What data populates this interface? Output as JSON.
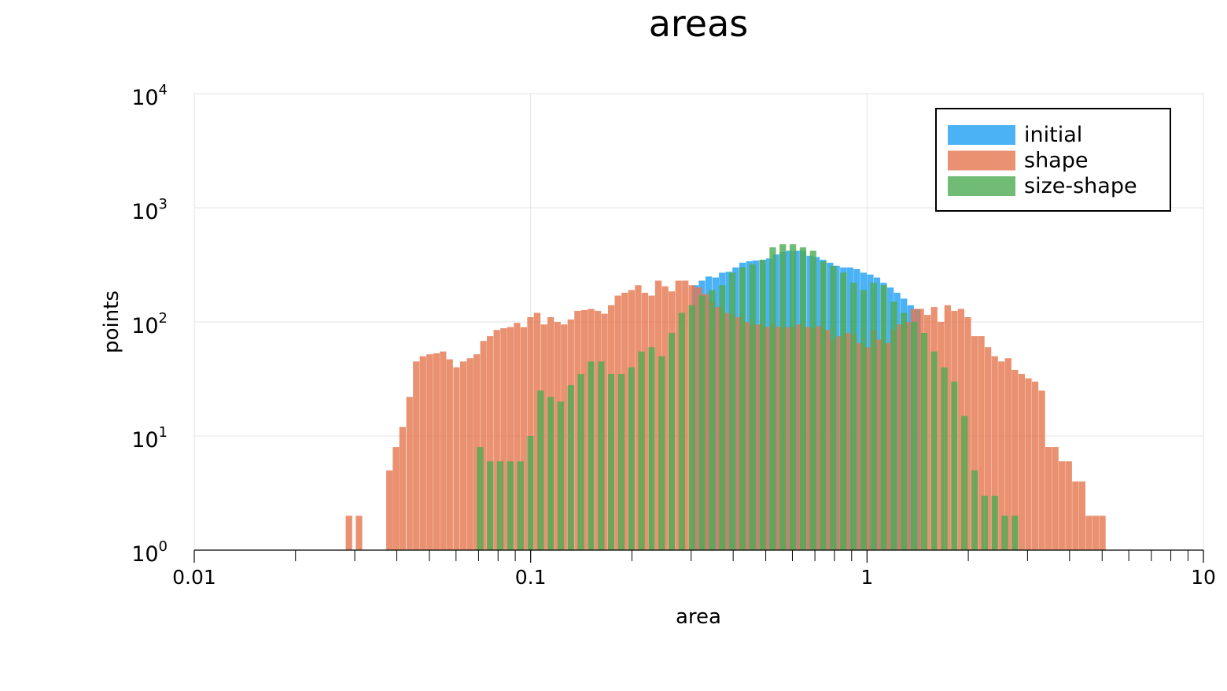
{
  "chart_data": {
    "type": "bar",
    "title": "areas",
    "xlabel": "area",
    "ylabel": "points",
    "x_scale": "log",
    "y_scale": "log",
    "xlim": [
      0.01,
      10
    ],
    "ylim": [
      1,
      10000
    ],
    "x_ticks": [
      {
        "value": 0.01,
        "label": "0.01"
      },
      {
        "value": 0.1,
        "label": "0.1"
      },
      {
        "value": 1,
        "label": "1"
      },
      {
        "value": 10,
        "label": "10"
      }
    ],
    "y_ticks": [
      {
        "value": 1,
        "base": "10",
        "exp": "0"
      },
      {
        "value": 10,
        "base": "10",
        "exp": "1"
      },
      {
        "value": 100,
        "base": "10",
        "exp": "2"
      },
      {
        "value": 1000,
        "base": "10",
        "exp": "3"
      },
      {
        "value": 10000,
        "base": "10",
        "exp": "4"
      }
    ],
    "grid": true,
    "legend_position": "top-right",
    "series": [
      {
        "name": "initial",
        "color": "#1e9ff2",
        "bins": [
          [
            0.302,
            210
          ],
          [
            0.316,
            230
          ],
          [
            0.331,
            250
          ],
          [
            0.347,
            245
          ],
          [
            0.363,
            270
          ],
          [
            0.38,
            275
          ],
          [
            0.398,
            300
          ],
          [
            0.417,
            330
          ],
          [
            0.437,
            340
          ],
          [
            0.457,
            345
          ],
          [
            0.479,
            350
          ],
          [
            0.501,
            360
          ],
          [
            0.525,
            390
          ],
          [
            0.55,
            410
          ],
          [
            0.575,
            420
          ],
          [
            0.603,
            420
          ],
          [
            0.631,
            420
          ],
          [
            0.661,
            380
          ],
          [
            0.692,
            370
          ],
          [
            0.724,
            350
          ],
          [
            0.759,
            330
          ],
          [
            0.794,
            310
          ],
          [
            0.832,
            300
          ],
          [
            0.871,
            300
          ],
          [
            0.912,
            290
          ],
          [
            0.955,
            270
          ],
          [
            1.0,
            260
          ],
          [
            1.047,
            245
          ],
          [
            1.096,
            220
          ],
          [
            1.148,
            200
          ],
          [
            1.202,
            180
          ],
          [
            1.259,
            160
          ],
          [
            1.318,
            140
          ],
          [
            1.38,
            130
          ]
        ]
      },
      {
        "name": "shape",
        "color": "#e3764e",
        "bins": [
          [
            0.0282,
            2
          ],
          [
            0.0302,
            2
          ],
          [
            0.0355,
            1
          ],
          [
            0.0372,
            5
          ],
          [
            0.0389,
            8
          ],
          [
            0.0407,
            12
          ],
          [
            0.0427,
            22
          ],
          [
            0.0447,
            45
          ],
          [
            0.0468,
            50
          ],
          [
            0.049,
            52
          ],
          [
            0.0513,
            53
          ],
          [
            0.0537,
            55
          ],
          [
            0.0562,
            47
          ],
          [
            0.0589,
            40
          ],
          [
            0.0617,
            45
          ],
          [
            0.0646,
            48
          ],
          [
            0.0676,
            52
          ],
          [
            0.0708,
            68
          ],
          [
            0.0741,
            75
          ],
          [
            0.0776,
            85
          ],
          [
            0.0813,
            88
          ],
          [
            0.0851,
            90
          ],
          [
            0.0891,
            98
          ],
          [
            0.0933,
            90
          ],
          [
            0.0977,
            110
          ],
          [
            0.1023,
            120
          ],
          [
            0.1072,
            95
          ],
          [
            0.1122,
            110
          ],
          [
            0.1175,
            100
          ],
          [
            0.123,
            95
          ],
          [
            0.1288,
            105
          ],
          [
            0.1349,
            125
          ],
          [
            0.1413,
            127
          ],
          [
            0.1479,
            130
          ],
          [
            0.1549,
            125
          ],
          [
            0.1622,
            118
          ],
          [
            0.1698,
            140
          ],
          [
            0.1778,
            170
          ],
          [
            0.1862,
            180
          ],
          [
            0.195,
            190
          ],
          [
            0.2042,
            210
          ],
          [
            0.2138,
            180
          ],
          [
            0.2239,
            170
          ],
          [
            0.2344,
            230
          ],
          [
            0.2455,
            205
          ],
          [
            0.257,
            185
          ],
          [
            0.2692,
            230
          ],
          [
            0.2818,
            230
          ],
          [
            0.2951,
            210
          ],
          [
            0.309,
            200
          ],
          [
            0.3236,
            175
          ],
          [
            0.3388,
            150
          ],
          [
            0.3548,
            135
          ],
          [
            0.3715,
            120
          ],
          [
            0.389,
            115
          ],
          [
            0.4074,
            110
          ],
          [
            0.4266,
            100
          ],
          [
            0.4467,
            95
          ],
          [
            0.4677,
            95
          ],
          [
            0.4898,
            90
          ],
          [
            0.5129,
            95
          ],
          [
            0.537,
            90
          ],
          [
            0.5623,
            90
          ],
          [
            0.5888,
            90
          ],
          [
            0.6166,
            95
          ],
          [
            0.6457,
            90
          ],
          [
            0.6761,
            88
          ],
          [
            0.7079,
            92
          ],
          [
            0.7413,
            85
          ],
          [
            0.7762,
            70
          ],
          [
            0.8128,
            75
          ],
          [
            0.8511,
            80
          ],
          [
            0.8913,
            78
          ],
          [
            0.9333,
            65
          ],
          [
            0.9772,
            60
          ],
          [
            1.0233,
            85
          ],
          [
            1.0715,
            70
          ],
          [
            1.122,
            65
          ],
          [
            1.1749,
            85
          ],
          [
            1.2303,
            95
          ],
          [
            1.2882,
            100
          ],
          [
            1.349,
            130
          ],
          [
            1.4125,
            130
          ],
          [
            1.4791,
            115
          ],
          [
            1.5488,
            135
          ],
          [
            1.6218,
            100
          ],
          [
            1.6982,
            140
          ],
          [
            1.7783,
            125
          ],
          [
            1.8621,
            130
          ],
          [
            1.9498,
            110
          ],
          [
            2.0417,
            75
          ],
          [
            2.138,
            75
          ],
          [
            2.2387,
            60
          ],
          [
            2.3442,
            50
          ],
          [
            2.4547,
            45
          ],
          [
            2.5704,
            48
          ],
          [
            2.6915,
            38
          ],
          [
            2.8184,
            35
          ],
          [
            2.9512,
            32
          ],
          [
            3.0903,
            30
          ],
          [
            3.2359,
            25
          ],
          [
            3.3884,
            8
          ],
          [
            3.5481,
            8
          ],
          [
            3.7154,
            6
          ],
          [
            3.8905,
            6
          ],
          [
            4.0738,
            4
          ],
          [
            4.2658,
            4
          ],
          [
            4.4668,
            2
          ],
          [
            4.6774,
            2
          ],
          [
            4.8978,
            2
          ],
          [
            5.3703,
            1
          ],
          [
            5.6234,
            1
          ],
          [
            6.0256,
            1
          ],
          [
            6.4565,
            1
          ]
        ]
      },
      {
        "name": "size-shape",
        "color": "#4dab53",
        "bins": [
          [
            0.0692,
            8
          ],
          [
            0.0741,
            6
          ],
          [
            0.0794,
            6
          ],
          [
            0.0851,
            6
          ],
          [
            0.0912,
            6
          ],
          [
            0.0977,
            10
          ],
          [
            0.1047,
            25
          ],
          [
            0.1122,
            22
          ],
          [
            0.1202,
            20
          ],
          [
            0.1288,
            28
          ],
          [
            0.138,
            35
          ],
          [
            0.1479,
            45
          ],
          [
            0.1585,
            45
          ],
          [
            0.1698,
            35
          ],
          [
            0.182,
            35
          ],
          [
            0.195,
            40
          ],
          [
            0.2089,
            55
          ],
          [
            0.2239,
            60
          ],
          [
            0.2399,
            50
          ],
          [
            0.257,
            80
          ],
          [
            0.2754,
            120
          ],
          [
            0.2951,
            140
          ],
          [
            0.3162,
            170
          ],
          [
            0.3388,
            190
          ],
          [
            0.3631,
            210
          ],
          [
            0.389,
            270
          ],
          [
            0.4169,
            300
          ],
          [
            0.4467,
            320
          ],
          [
            0.4786,
            350
          ],
          [
            0.5129,
            450
          ],
          [
            0.5495,
            480
          ],
          [
            0.5888,
            480
          ],
          [
            0.631,
            450
          ],
          [
            0.6761,
            420
          ],
          [
            0.7244,
            340
          ],
          [
            0.7762,
            310
          ],
          [
            0.8318,
            270
          ],
          [
            0.8913,
            220
          ],
          [
            0.955,
            190
          ],
          [
            1.0233,
            220
          ],
          [
            1.0965,
            210
          ],
          [
            1.1749,
            150
          ],
          [
            1.2589,
            120
          ],
          [
            1.349,
            100
          ],
          [
            1.4454,
            80
          ],
          [
            1.5488,
            55
          ],
          [
            1.6596,
            40
          ],
          [
            1.7783,
            30
          ],
          [
            1.9055,
            15
          ],
          [
            2.0417,
            5
          ],
          [
            2.1878,
            3
          ],
          [
            2.3442,
            3
          ],
          [
            2.5119,
            2
          ],
          [
            2.6915,
            2
          ],
          [
            2.884,
            1
          ],
          [
            3.0903,
            1
          ]
        ]
      }
    ]
  }
}
